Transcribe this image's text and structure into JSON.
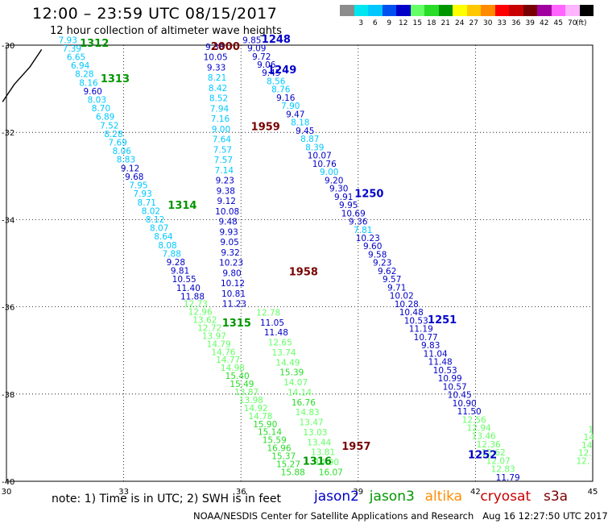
{
  "header": {
    "title": "12:00 – 23:59 UTC 08/15/2017",
    "subtitle": "12 hour collection of altimeter wave heights"
  },
  "color_scale": {
    "unit": "(ft)",
    "bins": [
      {
        "label": "",
        "color": "#8c8c8c"
      },
      {
        "label": "3",
        "color": "#00e6f0"
      },
      {
        "label": "6",
        "color": "#00c8ff"
      },
      {
        "label": "9",
        "color": "#0050f0"
      },
      {
        "label": "12",
        "color": "#0000c8"
      },
      {
        "label": "15",
        "color": "#64ff64"
      },
      {
        "label": "18",
        "color": "#28dc28"
      },
      {
        "label": "21",
        "color": "#009600"
      },
      {
        "label": "24",
        "color": "#ffff00"
      },
      {
        "label": "27",
        "color": "#ffc800"
      },
      {
        "label": "30",
        "color": "#ff8c00"
      },
      {
        "label": "33",
        "color": "#ff0000"
      },
      {
        "label": "36",
        "color": "#c80000"
      },
      {
        "label": "39",
        "color": "#780000"
      },
      {
        "label": "42",
        "color": "#a000a0"
      },
      {
        "label": "45",
        "color": "#ff64ff"
      },
      {
        "label": "70",
        "color": "#ffb4ff"
      },
      {
        "label": "",
        "color": "#000000"
      }
    ]
  },
  "map": {
    "lon_ticks": [
      {
        "lon": 30,
        "label": "30"
      },
      {
        "lon": 33,
        "label": "33"
      },
      {
        "lon": 36,
        "label": "36"
      },
      {
        "lon": 39,
        "label": "39"
      },
      {
        "lon": 42,
        "label": "42"
      },
      {
        "lon": 45,
        "label": "45"
      }
    ],
    "lat_ticks": [
      {
        "lat": -30,
        "label": "-30"
      },
      {
        "lat": -32,
        "label": "-32"
      },
      {
        "lat": -34,
        "label": "-34"
      },
      {
        "lat": -36,
        "label": "-36"
      },
      {
        "lat": -38,
        "label": "-38"
      },
      {
        "lat": -40,
        "label": "-40"
      }
    ],
    "coastline": [
      [
        30.9,
        -30.1
      ],
      [
        30.6,
        -30.5
      ],
      [
        30.2,
        -30.9
      ],
      [
        29.9,
        -31.3
      ]
    ],
    "passes": [
      {
        "label": "1312",
        "color": "#009600",
        "lon": 32.25,
        "lat": -30.04
      },
      {
        "label": "1313",
        "color": "#009600",
        "lon": 32.78,
        "lat": -30.85
      },
      {
        "label": "1314",
        "color": "#009600",
        "lon": 34.5,
        "lat": -33.75
      },
      {
        "label": "1315",
        "color": "#009600",
        "lon": 35.89,
        "lat": -36.45
      },
      {
        "label": "1316",
        "color": "#009600",
        "lon": 37.95,
        "lat": -39.62
      },
      {
        "label": "2000",
        "color": "#780000",
        "lon": 35.6,
        "lat": -30.11
      },
      {
        "label": "1959",
        "color": "#780000",
        "lon": 36.63,
        "lat": -31.95
      },
      {
        "label": "1958",
        "color": "#780000",
        "lon": 37.6,
        "lat": -35.28
      },
      {
        "label": "1957",
        "color": "#780000",
        "lon": 38.95,
        "lat": -39.28
      },
      {
        "label": "1248",
        "color": "#0000c8",
        "lon": 36.9,
        "lat": -29.94
      },
      {
        "label": "1249",
        "color": "#0000c8",
        "lon": 37.05,
        "lat": -30.65
      },
      {
        "label": "1250",
        "color": "#0000c8",
        "lon": 39.28,
        "lat": -33.48
      },
      {
        "label": "1251",
        "color": "#0000c8",
        "lon": 41.15,
        "lat": -36.38
      },
      {
        "label": "1252",
        "color": "#0000c8",
        "lon": 42.18,
        "lat": -39.47
      }
    ],
    "tracks": [
      {
        "name": "1312",
        "lon_start": 31.57,
        "lat_start": -29.95,
        "lon_end": 34.76,
        "lat_end": -35.83,
        "values": [
          {
            "v": "7.93",
            "c": "#00c8ff"
          },
          {
            "v": "7.39",
            "c": "#00c8ff"
          },
          {
            "v": "6.65",
            "c": "#00c8ff"
          },
          {
            "v": "6.94",
            "c": "#00c8ff"
          },
          {
            "v": "8.28",
            "c": "#00c8ff"
          },
          {
            "v": "8.16",
            "c": "#00c8ff"
          },
          {
            "v": "9.60",
            "c": "#0000c8"
          },
          {
            "v": "8.03",
            "c": "#00c8ff"
          },
          {
            "v": "8.70",
            "c": "#00c8ff"
          },
          {
            "v": "6.89",
            "c": "#00c8ff"
          },
          {
            "v": "7.52",
            "c": "#00c8ff"
          },
          {
            "v": "8.28",
            "c": "#00c8ff"
          },
          {
            "v": "7.69",
            "c": "#00c8ff"
          },
          {
            "v": "8.06",
            "c": "#00c8ff"
          },
          {
            "v": "8.83",
            "c": "#00c8ff"
          },
          {
            "v": "9.12",
            "c": "#0000c8"
          },
          {
            "v": "9.68",
            "c": "#0000c8"
          },
          {
            "v": "7.95",
            "c": "#00c8ff"
          },
          {
            "v": "7.93",
            "c": "#00c8ff"
          },
          {
            "v": "8.71",
            "c": "#00c8ff"
          },
          {
            "v": "8.02",
            "c": "#00c8ff"
          },
          {
            "v": "8.12",
            "c": "#00c8ff"
          },
          {
            "v": "8.07",
            "c": "#00c8ff"
          },
          {
            "v": "8.64",
            "c": "#00c8ff"
          },
          {
            "v": "8.08",
            "c": "#00c8ff"
          },
          {
            "v": "7.88",
            "c": "#00c8ff"
          },
          {
            "v": "9.28",
            "c": "#0000c8"
          },
          {
            "v": "9.81",
            "c": "#0000c8"
          },
          {
            "v": "10.55",
            "c": "#0000c8"
          },
          {
            "v": "11.40",
            "c": "#0000c8"
          },
          {
            "v": "11.88",
            "c": "#0000c8"
          }
        ]
      },
      {
        "name": "1313",
        "lon_start": 34.84,
        "lat_start": -36.0,
        "lon_end": 37.33,
        "lat_end": -39.86,
        "values": [
          {
            "v": "12.73",
            "c": "#64ff64"
          },
          {
            "v": "12.96",
            "c": "#64ff64"
          },
          {
            "v": "13.62",
            "c": "#64ff64"
          },
          {
            "v": "12.72",
            "c": "#64ff64"
          },
          {
            "v": "13.97",
            "c": "#64ff64"
          },
          {
            "v": "14.79",
            "c": "#64ff64"
          },
          {
            "v": "14.76",
            "c": "#64ff64"
          },
          {
            "v": "14.77",
            "c": "#64ff64"
          },
          {
            "v": "14.98",
            "c": "#64ff64"
          },
          {
            "v": "15.40",
            "c": "#28dc28"
          },
          {
            "v": "15.49",
            "c": "#28dc28"
          },
          {
            "v": "13.87",
            "c": "#64ff64"
          },
          {
            "v": "13.98",
            "c": "#64ff64"
          },
          {
            "v": "14.92",
            "c": "#64ff64"
          },
          {
            "v": "14.78",
            "c": "#64ff64"
          },
          {
            "v": "15.90",
            "c": "#28dc28"
          },
          {
            "v": "15.14",
            "c": "#28dc28"
          },
          {
            "v": "15.59",
            "c": "#28dc28"
          },
          {
            "v": "16.96",
            "c": "#28dc28"
          },
          {
            "v": "15.37",
            "c": "#28dc28"
          },
          {
            "v": "15.27",
            "c": "#28dc28"
          },
          {
            "v": "15.88",
            "c": "#28dc28"
          }
        ]
      },
      {
        "name": "2000",
        "lon_start": 35.33,
        "lat_start": -30.11,
        "lon_end": 35.83,
        "lat_end": -36.0,
        "values": [
          {
            "v": "9.38",
            "c": "#0000c8"
          },
          {
            "v": "10.05",
            "c": "#0000c8"
          },
          {
            "v": "9.33",
            "c": "#0000c8"
          },
          {
            "v": "8.21",
            "c": "#00c8ff"
          },
          {
            "v": "8.42",
            "c": "#00c8ff"
          },
          {
            "v": "8.52",
            "c": "#00c8ff"
          },
          {
            "v": "7.94",
            "c": "#00c8ff"
          },
          {
            "v": "7.16",
            "c": "#00c8ff"
          },
          {
            "v": "9.00",
            "c": "#00c8ff"
          },
          {
            "v": "7.64",
            "c": "#00c8ff"
          },
          {
            "v": "7.57",
            "c": "#00c8ff"
          },
          {
            "v": "7.57",
            "c": "#00c8ff"
          },
          {
            "v": "7.14",
            "c": "#00c8ff"
          },
          {
            "v": "9.23",
            "c": "#0000c8"
          },
          {
            "v": "9.38",
            "c": "#0000c8"
          },
          {
            "v": "9.12",
            "c": "#0000c8"
          },
          {
            "v": "10.08",
            "c": "#0000c8"
          },
          {
            "v": "9.48",
            "c": "#0000c8"
          },
          {
            "v": "9.93",
            "c": "#0000c8"
          },
          {
            "v": "9.05",
            "c": "#0000c8"
          },
          {
            "v": "9.32",
            "c": "#0000c8"
          },
          {
            "v": "10.23",
            "c": "#0000c8"
          },
          {
            "v": "9.80",
            "c": "#0000c8"
          },
          {
            "v": "10.12",
            "c": "#0000c8"
          },
          {
            "v": "10.81",
            "c": "#0000c8"
          },
          {
            "v": "11.23",
            "c": "#0000c8"
          }
        ]
      },
      {
        "name": "1959",
        "lon_start": 36.7,
        "lat_start": -36.2,
        "lon_end": 38.3,
        "lat_end": -39.86,
        "values": [
          {
            "v": "12.78",
            "c": "#64ff64"
          },
          {
            "v": "11.05",
            "c": "#0000c8"
          },
          {
            "v": "11.48",
            "c": "#0000c8"
          },
          {
            "v": "12.65",
            "c": "#64ff64"
          },
          {
            "v": "13.74",
            "c": "#64ff64"
          },
          {
            "v": "14.49",
            "c": "#64ff64"
          },
          {
            "v": "15.39",
            "c": "#28dc28"
          },
          {
            "v": "14.07",
            "c": "#64ff64"
          },
          {
            "v": "14.14",
            "c": "#64ff64"
          },
          {
            "v": "16.76",
            "c": "#28dc28"
          },
          {
            "v": "14.83",
            "c": "#64ff64"
          },
          {
            "v": "13.47",
            "c": "#64ff64"
          },
          {
            "v": "13.03",
            "c": "#64ff64"
          },
          {
            "v": "13.44",
            "c": "#64ff64"
          },
          {
            "v": "13.81",
            "c": "#64ff64"
          },
          {
            "v": "14.90",
            "c": "#64ff64"
          },
          {
            "v": "16.07",
            "c": "#28dc28"
          }
        ]
      },
      {
        "name": "1248",
        "lon_start": 36.28,
        "lat_start": -29.95,
        "lon_end": 42.83,
        "lat_end": -39.98,
        "values": [
          {
            "v": "9.85",
            "c": "#0000c8"
          },
          {
            "v": "9.09",
            "c": "#0000c8"
          },
          {
            "v": "9.72",
            "c": "#0000c8"
          },
          {
            "v": "9.06",
            "c": "#0000c8"
          },
          {
            "v": "9.45",
            "c": "#0000c8"
          },
          {
            "v": "8.56",
            "c": "#00c8ff"
          },
          {
            "v": "8.76",
            "c": "#00c8ff"
          },
          {
            "v": "9.16",
            "c": "#0000c8"
          },
          {
            "v": "7.90",
            "c": "#00c8ff"
          },
          {
            "v": "9.47",
            "c": "#0000c8"
          },
          {
            "v": "8.18",
            "c": "#00c8ff"
          },
          {
            "v": "9.45",
            "c": "#0000c8"
          },
          {
            "v": "8.87",
            "c": "#00c8ff"
          },
          {
            "v": "8.39",
            "c": "#00c8ff"
          },
          {
            "v": "10.07",
            "c": "#0000c8"
          },
          {
            "v": "10.76",
            "c": "#0000c8"
          },
          {
            "v": "9.00",
            "c": "#00c8ff"
          },
          {
            "v": "9.20",
            "c": "#0000c8"
          },
          {
            "v": "9.30",
            "c": "#0000c8"
          },
          {
            "v": "9.91",
            "c": "#0000c8"
          },
          {
            "v": "9.95",
            "c": "#0000c8"
          },
          {
            "v": "10.69",
            "c": "#0000c8"
          },
          {
            "v": "9.36",
            "c": "#0000c8"
          },
          {
            "v": "7.81",
            "c": "#00c8ff"
          },
          {
            "v": "10.23",
            "c": "#0000c8"
          },
          {
            "v": "9.60",
            "c": "#0000c8"
          },
          {
            "v": "9.58",
            "c": "#0000c8"
          },
          {
            "v": "9.23",
            "c": "#0000c8"
          },
          {
            "v": "9.62",
            "c": "#0000c8"
          },
          {
            "v": "9.57",
            "c": "#0000c8"
          },
          {
            "v": "9.71",
            "c": "#0000c8"
          },
          {
            "v": "10.02",
            "c": "#0000c8"
          },
          {
            "v": "10.28",
            "c": "#0000c8"
          },
          {
            "v": "10.48",
            "c": "#0000c8"
          },
          {
            "v": "10.53",
            "c": "#0000c8"
          },
          {
            "v": "11.19",
            "c": "#0000c8"
          },
          {
            "v": "10.77",
            "c": "#0000c8"
          },
          {
            "v": "9.83",
            "c": "#0000c8"
          },
          {
            "v": "11.04",
            "c": "#0000c8"
          },
          {
            "v": "11.48",
            "c": "#0000c8"
          },
          {
            "v": "10.53",
            "c": "#0000c8"
          },
          {
            "v": "10.99",
            "c": "#0000c8"
          },
          {
            "v": "10.57",
            "c": "#0000c8"
          },
          {
            "v": "10.45",
            "c": "#0000c8"
          },
          {
            "v": "10.90",
            "c": "#0000c8"
          },
          {
            "v": "11.50",
            "c": "#0000c8"
          },
          {
            "v": "12.56",
            "c": "#64ff64"
          },
          {
            "v": "12.94",
            "c": "#64ff64"
          },
          {
            "v": "13.46",
            "c": "#64ff64"
          },
          {
            "v": "12.36",
            "c": "#64ff64"
          },
          {
            "v": "12.62",
            "c": "#64ff64"
          },
          {
            "v": "12.07",
            "c": "#64ff64"
          },
          {
            "v": "12.83",
            "c": "#64ff64"
          },
          {
            "v": "11.79",
            "c": "#0000c8"
          }
        ]
      },
      {
        "name": "edge",
        "lon_start": 44.95,
        "lat_start": -38.88,
        "lon_end": 44.75,
        "lat_end": -39.6,
        "values": [
          {
            "v": "1",
            "c": "#64ff64"
          },
          {
            "v": "14",
            "c": "#64ff64"
          },
          {
            "v": "14",
            "c": "#64ff64"
          },
          {
            "v": "12.",
            "c": "#64ff64"
          },
          {
            "v": "12.",
            "c": "#64ff64"
          }
        ]
      }
    ]
  },
  "footer": {
    "note": "note: 1) Time is in UTC; 2) SWH is in feet",
    "satellites": [
      {
        "name": "jason2",
        "color": "#0000c8"
      },
      {
        "name": "jason3",
        "color": "#009600"
      },
      {
        "name": "altika",
        "color": "#ff8c00"
      },
      {
        "name": "cryosat",
        "color": "#c80000"
      },
      {
        "name": "s3a",
        "color": "#780000"
      }
    ],
    "credit": "NOAA/NESDIS Center for Satellite Applications and Research",
    "timestamp": "Aug 16 12:27:50 UTC 2017"
  }
}
